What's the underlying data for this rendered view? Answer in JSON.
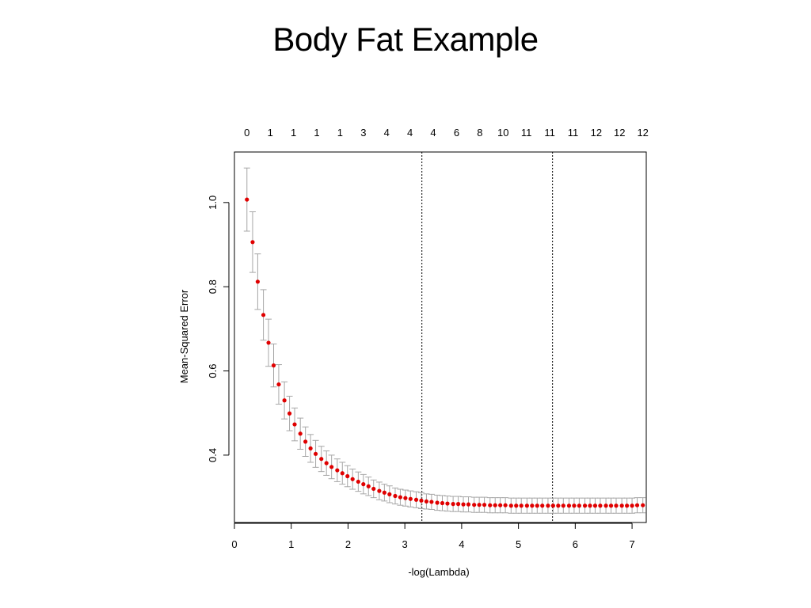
{
  "slide": {
    "title": "Body Fat Example"
  },
  "chart_data": {
    "type": "scatter",
    "title": "",
    "xlabel": "-log(Lambda)",
    "ylabel": "Mean-Squared Error",
    "xlim": [
      0,
      7.25
    ],
    "ylim": [
      0.24,
      1.12
    ],
    "x_ticks": [
      0,
      1,
      2,
      3,
      4,
      5,
      6,
      7
    ],
    "y_ticks": [
      0.4,
      0.6,
      0.8,
      1.0
    ],
    "y_tick_labels": [
      "0.4",
      "0.6",
      "0.8",
      "1.0"
    ],
    "top_axis_counts": [
      0,
      1,
      1,
      1,
      1,
      3,
      4,
      4,
      4,
      6,
      8,
      10,
      11,
      11,
      11,
      12,
      12,
      12
    ],
    "reference_lines_x": [
      3.3,
      5.6
    ],
    "point_color": "#e00000",
    "errorbar_color": "#a6a6a6",
    "reference_line_color": "#000000",
    "grid": false,
    "series": [
      {
        "x": [
          0.22,
          0.32,
          0.41,
          0.51,
          0.6,
          0.69,
          0.78,
          0.88,
          0.97,
          1.06,
          1.16,
          1.25,
          1.34,
          1.43,
          1.53,
          1.62,
          1.71,
          1.81,
          1.9,
          1.99,
          2.08,
          2.18,
          2.27,
          2.36,
          2.45,
          2.55,
          2.64,
          2.73,
          2.83,
          2.92,
          3.01,
          3.1,
          3.2,
          3.29,
          3.38,
          3.47,
          3.57,
          3.66,
          3.75,
          3.85,
          3.94,
          4.03,
          4.12,
          4.22,
          4.31,
          4.4,
          4.5,
          4.59,
          4.68,
          4.77,
          4.87,
          4.96,
          5.05,
          5.15,
          5.24,
          5.33,
          5.42,
          5.52,
          5.61,
          5.7,
          5.79,
          5.89,
          5.98,
          6.07,
          6.17,
          6.26,
          6.35,
          6.44,
          6.54,
          6.63,
          6.72,
          6.82,
          6.91,
          7.0,
          7.09,
          7.19
        ],
        "y": [
          1.007,
          0.906,
          0.812,
          0.733,
          0.667,
          0.613,
          0.568,
          0.53,
          0.499,
          0.473,
          0.451,
          0.432,
          0.416,
          0.403,
          0.391,
          0.381,
          0.372,
          0.364,
          0.357,
          0.35,
          0.343,
          0.337,
          0.331,
          0.326,
          0.32,
          0.315,
          0.311,
          0.307,
          0.303,
          0.3,
          0.298,
          0.296,
          0.294,
          0.292,
          0.29,
          0.289,
          0.287,
          0.286,
          0.285,
          0.284,
          0.284,
          0.283,
          0.283,
          0.282,
          0.282,
          0.282,
          0.281,
          0.281,
          0.281,
          0.281,
          0.28,
          0.28,
          0.28,
          0.28,
          0.28,
          0.28,
          0.28,
          0.28,
          0.28,
          0.28,
          0.28,
          0.28,
          0.28,
          0.28,
          0.28,
          0.28,
          0.28,
          0.28,
          0.28,
          0.28,
          0.28,
          0.28,
          0.28,
          0.28,
          0.281,
          0.281
        ],
        "err": [
          0.075,
          0.072,
          0.066,
          0.06,
          0.056,
          0.051,
          0.047,
          0.044,
          0.041,
          0.039,
          0.037,
          0.035,
          0.033,
          0.032,
          0.03,
          0.029,
          0.028,
          0.027,
          0.026,
          0.025,
          0.024,
          0.023,
          0.023,
          0.022,
          0.021,
          0.021,
          0.02,
          0.02,
          0.019,
          0.019,
          0.019,
          0.019,
          0.019,
          0.019,
          0.018,
          0.018,
          0.018,
          0.018,
          0.018,
          0.018,
          0.018,
          0.018,
          0.018,
          0.018,
          0.018,
          0.018,
          0.018,
          0.018,
          0.018,
          0.018,
          0.018,
          0.018,
          0.018,
          0.018,
          0.018,
          0.018,
          0.018,
          0.018,
          0.018,
          0.018,
          0.018,
          0.018,
          0.018,
          0.018,
          0.018,
          0.018,
          0.018,
          0.018,
          0.018,
          0.018,
          0.018,
          0.018,
          0.018,
          0.018,
          0.018,
          0.018
        ]
      }
    ]
  }
}
